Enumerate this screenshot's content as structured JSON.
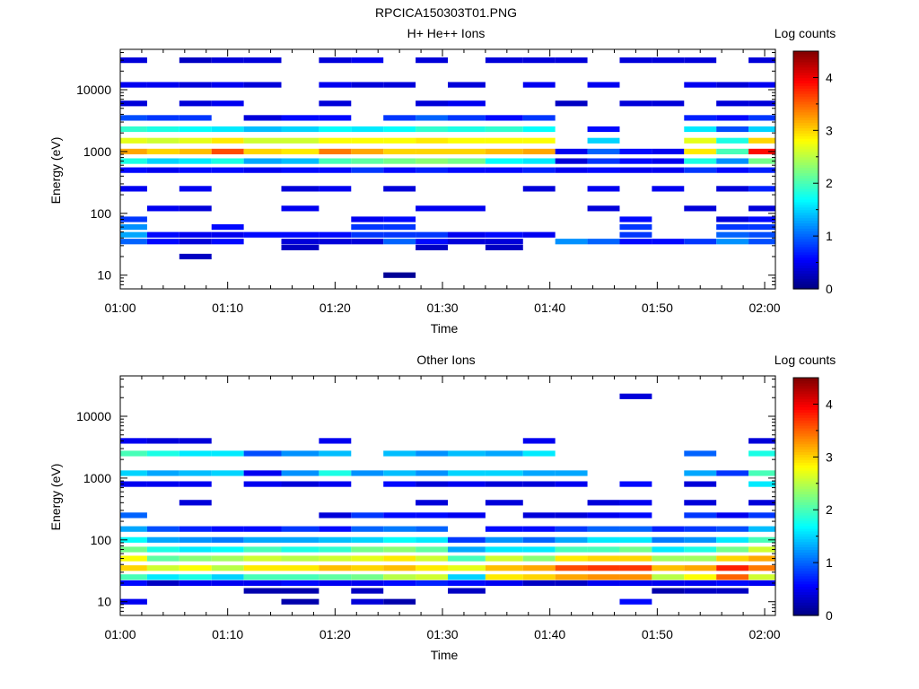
{
  "figure_title": "RPCICA150303T01.PNG",
  "chart_data": [
    {
      "type": "heatmap",
      "title": "H+ He++ Ions",
      "xlabel": "Time",
      "ylabel": "Energy (eV)",
      "colorbar_label": "Log counts",
      "colorbar_ticks": [
        "0",
        "1",
        "2",
        "3",
        "4"
      ],
      "colorbar_range": [
        0,
        4.5
      ],
      "x_ticks": [
        "01:00",
        "01:10",
        "01:20",
        "01:30",
        "01:40",
        "01:50",
        "02:00"
      ],
      "x_range": [
        "01:00",
        "02:01"
      ],
      "y_ticks": [
        "10",
        "100",
        "1000",
        "10000"
      ],
      "y_scale": "log",
      "y_range": [
        6,
        45000
      ],
      "colormap": "jet",
      "time_bins": [
        "01:01",
        "01:04",
        "01:07",
        "01:10",
        "01:13",
        "01:17",
        "01:20",
        "01:23",
        "01:26",
        "01:29",
        "01:32",
        "01:36",
        "01:39",
        "01:42",
        "01:45",
        "01:48",
        "01:51",
        "01:54",
        "01:57",
        "02:00"
      ],
      "energy_levels": [
        {
          "energy": 10,
          "values": [
            null,
            null,
            null,
            null,
            null,
            null,
            null,
            null,
            0.1,
            null,
            null,
            null,
            null,
            null,
            null,
            null,
            null,
            null,
            null,
            null
          ]
        },
        {
          "energy": 20,
          "values": [
            null,
            null,
            0.3,
            null,
            null,
            null,
            null,
            null,
            null,
            null,
            null,
            null,
            null,
            null,
            null,
            null,
            null,
            null,
            null,
            null
          ]
        },
        {
          "energy": 28,
          "values": [
            null,
            null,
            null,
            null,
            null,
            0.3,
            null,
            null,
            null,
            0.3,
            null,
            0.3,
            null,
            null,
            null,
            null,
            null,
            null,
            null,
            null
          ]
        },
        {
          "energy": 35,
          "values": [
            1.0,
            0.6,
            0.4,
            0.6,
            null,
            0.4,
            0.4,
            0.4,
            1.0,
            0.6,
            0.4,
            0.4,
            null,
            1.2,
            1.0,
            0.6,
            0.6,
            0.8,
            1.2,
            0.9
          ]
        },
        {
          "energy": 45,
          "values": [
            1.3,
            0.6,
            0.5,
            0.5,
            0.6,
            0.6,
            0.6,
            0.8,
            0.8,
            0.8,
            0.5,
            0.6,
            0.5,
            null,
            null,
            0.8,
            null,
            null,
            1.0,
            0.9
          ]
        },
        {
          "energy": 60,
          "values": [
            1.2,
            null,
            null,
            0.6,
            null,
            null,
            null,
            0.8,
            0.8,
            null,
            null,
            null,
            null,
            null,
            null,
            0.8,
            null,
            null,
            0.8,
            0.8
          ]
        },
        {
          "energy": 80,
          "values": [
            0.8,
            null,
            null,
            null,
            null,
            null,
            null,
            0.5,
            0.6,
            null,
            null,
            null,
            null,
            null,
            null,
            0.6,
            null,
            null,
            0.4,
            0.6
          ]
        },
        {
          "energy": 120,
          "values": [
            null,
            0.5,
            0.4,
            null,
            null,
            0.5,
            null,
            null,
            null,
            0.5,
            0.5,
            null,
            null,
            null,
            0.4,
            null,
            null,
            0.4,
            null,
            0.4
          ]
        },
        {
          "energy": 250,
          "values": [
            0.5,
            null,
            0.5,
            null,
            null,
            0.4,
            0.5,
            null,
            0.4,
            null,
            null,
            null,
            0.4,
            null,
            0.5,
            null,
            0.5,
            null,
            0.4,
            0.7
          ]
        },
        {
          "energy": 500,
          "values": [
            0.6,
            0.5,
            0.6,
            0.6,
            0.5,
            0.6,
            0.6,
            0.8,
            0.6,
            0.7,
            0.6,
            0.6,
            0.7,
            0.5,
            0.6,
            0.5,
            0.5,
            0.8,
            0.6,
            0.7
          ]
        },
        {
          "energy": 700,
          "values": [
            1.8,
            1.5,
            1.6,
            1.8,
            1.3,
            1.4,
            2.0,
            2.1,
            2.2,
            2.3,
            2.2,
            1.7,
            1.6,
            0.4,
            0.8,
            0.6,
            0.5,
            1.8,
            1.2,
            2.2
          ]
        },
        {
          "energy": 1000,
          "values": [
            3.2,
            3.0,
            3.1,
            3.6,
            3.0,
            2.9,
            3.4,
            3.2,
            3.0,
            3.0,
            3.0,
            3.1,
            3.2,
            0.5,
            1.0,
            0.6,
            0.5,
            2.9,
            2.0,
            3.9
          ]
        },
        {
          "energy": 1500,
          "values": [
            2.7,
            2.6,
            2.7,
            2.9,
            2.6,
            2.6,
            2.8,
            2.8,
            2.8,
            2.9,
            2.8,
            2.8,
            2.8,
            null,
            1.5,
            null,
            null,
            2.7,
            1.8,
            3.0
          ]
        },
        {
          "energy": 2300,
          "values": [
            1.9,
            1.8,
            1.7,
            1.6,
            1.4,
            1.5,
            1.7,
            1.6,
            1.7,
            1.9,
            1.8,
            1.9,
            1.7,
            null,
            0.6,
            null,
            null,
            1.6,
            0.9,
            1.5
          ]
        },
        {
          "energy": 3500,
          "values": [
            0.9,
            0.8,
            0.8,
            null,
            0.4,
            0.6,
            0.6,
            null,
            0.8,
            1.0,
            0.8,
            0.6,
            0.8,
            null,
            null,
            null,
            null,
            0.7,
            0.6,
            0.8
          ]
        },
        {
          "energy": 6000,
          "values": [
            0.4,
            null,
            0.4,
            0.5,
            null,
            null,
            0.4,
            null,
            null,
            0.4,
            0.5,
            null,
            null,
            0.3,
            null,
            0.4,
            0.4,
            null,
            0.4,
            0.4
          ]
        },
        {
          "energy": 12000,
          "values": [
            0.5,
            0.5,
            0.4,
            0.5,
            0.4,
            null,
            0.5,
            0.4,
            0.4,
            null,
            0.4,
            null,
            0.5,
            null,
            0.5,
            null,
            null,
            0.5,
            0.4,
            0.5
          ]
        },
        {
          "energy": 30000,
          "values": [
            0.4,
            null,
            0.3,
            0.4,
            0.4,
            null,
            0.4,
            0.5,
            null,
            0.4,
            null,
            0.4,
            0.4,
            0.4,
            null,
            0.4,
            0.4,
            0.4,
            null,
            0.4
          ]
        }
      ]
    },
    {
      "type": "heatmap",
      "title": "Other Ions",
      "xlabel": "Time",
      "ylabel": "Energy (eV)",
      "colorbar_label": "Log counts",
      "colorbar_ticks": [
        "0",
        "1",
        "2",
        "3",
        "4"
      ],
      "colorbar_range": [
        0,
        4.5
      ],
      "x_ticks": [
        "01:00",
        "01:10",
        "01:20",
        "01:30",
        "01:40",
        "01:50",
        "02:00"
      ],
      "x_range": [
        "01:00",
        "02:01"
      ],
      "y_ticks": [
        "10",
        "100",
        "1000",
        "10000"
      ],
      "y_scale": "log",
      "y_range": [
        6,
        45000
      ],
      "colormap": "jet",
      "time_bins": [
        "01:01",
        "01:04",
        "01:07",
        "01:10",
        "01:13",
        "01:17",
        "01:20",
        "01:23",
        "01:26",
        "01:29",
        "01:32",
        "01:36",
        "01:39",
        "01:42",
        "01:45",
        "01:48",
        "01:51",
        "01:54",
        "01:57",
        "02:00"
      ],
      "energy_levels": [
        {
          "energy": 10,
          "values": [
            0.5,
            null,
            null,
            null,
            null,
            0.2,
            null,
            0.4,
            0.2,
            null,
            null,
            null,
            null,
            null,
            null,
            0.6,
            null,
            null,
            null,
            null
          ]
        },
        {
          "energy": 15,
          "values": [
            null,
            null,
            null,
            null,
            0.2,
            0.2,
            null,
            0.3,
            null,
            null,
            0.3,
            null,
            null,
            null,
            null,
            null,
            0.2,
            0.3,
            0.3,
            null
          ]
        },
        {
          "energy": 20,
          "values": [
            0.6,
            0.3,
            0.5,
            0.5,
            0.5,
            0.6,
            0.5,
            0.5,
            0.6,
            0.7,
            0.6,
            0.5,
            0.3,
            0.3,
            0.5,
            0.5,
            0.5,
            0.5,
            0.6,
            0.5
          ]
        },
        {
          "energy": 25,
          "values": [
            2.0,
            1.6,
            1.8,
            1.5,
            2.0,
            2.0,
            2.1,
            2.2,
            2.5,
            2.6,
            1.5,
            2.9,
            3.0,
            3.2,
            3.3,
            3.3,
            2.5,
            2.8,
            3.5,
            2.6
          ]
        },
        {
          "energy": 35,
          "values": [
            3.0,
            2.6,
            2.8,
            2.5,
            2.9,
            2.9,
            3.1,
            3.0,
            3.1,
            2.9,
            2.7,
            3.1,
            3.2,
            3.6,
            3.7,
            3.7,
            3.1,
            3.2,
            3.8,
            3.4
          ]
        },
        {
          "energy": 50,
          "values": [
            2.8,
            2.1,
            2.3,
            2.4,
            2.6,
            2.5,
            2.6,
            2.7,
            2.9,
            2.6,
            2.0,
            2.6,
            2.3,
            2.9,
            3.0,
            3.0,
            2.4,
            2.4,
            3.0,
            3.2
          ]
        },
        {
          "energy": 70,
          "values": [
            2.2,
            1.8,
            1.6,
            1.7,
            2.0,
            1.8,
            1.9,
            2.2,
            2.3,
            2.1,
            1.3,
            1.6,
            1.6,
            2.0,
            2.0,
            2.2,
            1.6,
            1.8,
            2.2,
            2.6
          ]
        },
        {
          "energy": 100,
          "values": [
            1.7,
            1.3,
            1.2,
            1.1,
            1.3,
            1.3,
            1.4,
            1.5,
            1.7,
            1.6,
            0.8,
            1.2,
            1.0,
            1.3,
            1.6,
            1.6,
            1.1,
            1.2,
            1.6,
            2.0
          ]
        },
        {
          "energy": 150,
          "values": [
            1.3,
            0.9,
            0.7,
            0.6,
            0.6,
            0.8,
            0.6,
            1.0,
            1.1,
            1.0,
            null,
            0.6,
            0.6,
            0.8,
            1.0,
            1.0,
            0.7,
            0.8,
            0.9,
            1.4
          ]
        },
        {
          "energy": 250,
          "values": [
            1.0,
            null,
            null,
            null,
            null,
            null,
            0.4,
            0.8,
            0.6,
            0.6,
            0.5,
            null,
            0.4,
            0.4,
            0.5,
            0.6,
            null,
            0.8,
            0.5,
            0.8
          ]
        },
        {
          "energy": 400,
          "values": [
            null,
            null,
            0.4,
            null,
            null,
            null,
            null,
            null,
            null,
            0.4,
            null,
            0.4,
            null,
            null,
            0.4,
            0.5,
            null,
            0.4,
            null,
            0.4
          ]
        },
        {
          "energy": 800,
          "values": [
            0.5,
            0.5,
            0.5,
            null,
            0.5,
            0.4,
            0.5,
            null,
            0.6,
            0.4,
            0.5,
            0.4,
            0.4,
            0.5,
            null,
            0.6,
            null,
            0.4,
            null,
            1.6
          ]
        },
        {
          "energy": 1200,
          "values": [
            1.5,
            1.3,
            1.4,
            1.5,
            0.5,
            1.2,
            1.8,
            1.2,
            1.4,
            1.2,
            1.5,
            1.5,
            1.3,
            1.3,
            null,
            null,
            null,
            1.3,
            0.8,
            2.0
          ]
        },
        {
          "energy": 2500,
          "values": [
            2.0,
            1.8,
            1.6,
            1.6,
            0.9,
            1.2,
            1.4,
            null,
            1.4,
            1.2,
            1.4,
            1.3,
            1.6,
            null,
            null,
            null,
            null,
            1.0,
            null,
            1.8
          ]
        },
        {
          "energy": 4000,
          "values": [
            0.5,
            0.4,
            0.4,
            null,
            null,
            null,
            0.5,
            null,
            null,
            null,
            null,
            null,
            0.5,
            null,
            null,
            null,
            null,
            null,
            null,
            0.4
          ]
        },
        {
          "energy": 21000,
          "values": [
            null,
            null,
            null,
            null,
            null,
            null,
            null,
            null,
            null,
            null,
            null,
            null,
            null,
            null,
            null,
            0.4,
            null,
            null,
            null,
            null
          ]
        }
      ]
    }
  ]
}
